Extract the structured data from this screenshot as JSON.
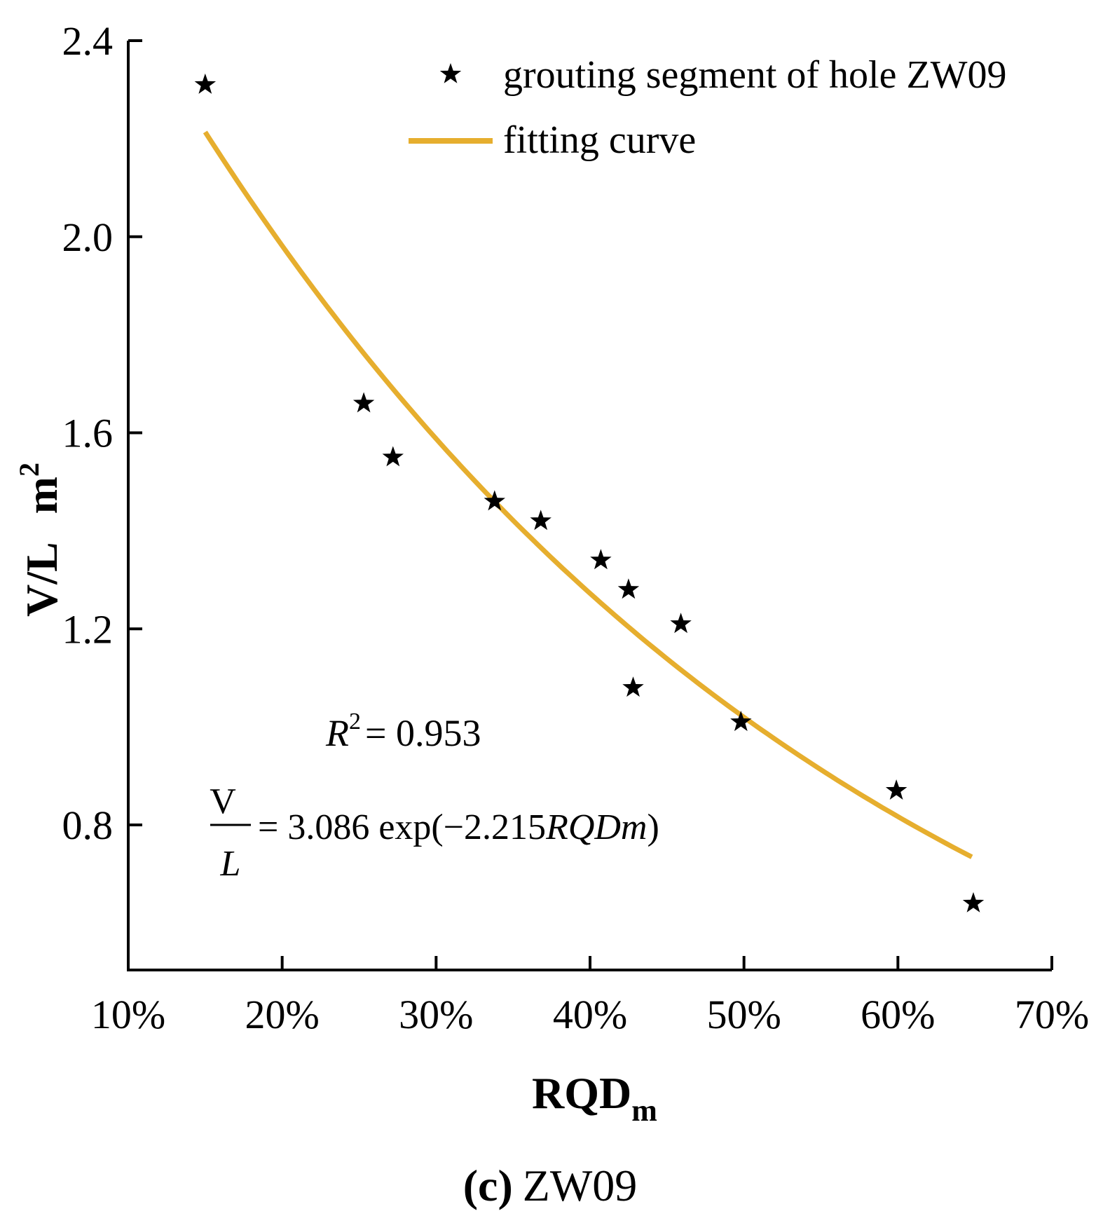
{
  "chart_data": {
    "type": "scatter",
    "title": "",
    "caption_letter": "(c)",
    "caption_text": "ZW09",
    "xlabel_main": "RQD",
    "xlabel_sub": "m",
    "ylabel_main": "V/L",
    "ylabel_unit": "m",
    "ylabel_unit_sup": "2",
    "xlim": [
      10,
      70
    ],
    "ylim": [
      0.5,
      2.4
    ],
    "x_ticks": [
      10,
      20,
      30,
      40,
      50,
      60,
      70
    ],
    "x_tick_labels": [
      "10%",
      "20%",
      "30%",
      "40%",
      "50%",
      "60%",
      "70%"
    ],
    "y_ticks": [
      0.8,
      1.2,
      1.6,
      2.0,
      2.4
    ],
    "y_tick_labels": [
      "0.8",
      "1.2",
      "1.6",
      "2.0",
      "2.4"
    ],
    "grid": false,
    "legend_position": "top-right",
    "series": [
      {
        "name": "grouting segment of hole ZW09",
        "kind": "scatter",
        "marker": "star",
        "color": "#000000",
        "x": [
          15.0,
          25.3,
          27.2,
          33.8,
          36.8,
          40.7,
          42.5,
          42.8,
          45.9,
          49.8,
          59.9,
          64.9
        ],
        "y": [
          2.31,
          1.66,
          1.55,
          1.46,
          1.42,
          1.34,
          1.28,
          1.08,
          1.21,
          1.01,
          0.87,
          0.64
        ]
      },
      {
        "name": "fitting curve",
        "kind": "line",
        "color": "#E6AE2E",
        "model": {
          "a": 3.086,
          "b": -2.215
        },
        "x_range": [
          15.0,
          64.8
        ]
      }
    ],
    "annotations": {
      "r2_label": "R",
      "r2_sup": "2",
      "r2_value": "= 0.953",
      "eq_num": "V",
      "eq_den": "L",
      "eq_rest_a": "= 3.086 exp(−2.215",
      "eq_rest_b": "RQDm",
      "eq_rest_c": ")"
    }
  }
}
